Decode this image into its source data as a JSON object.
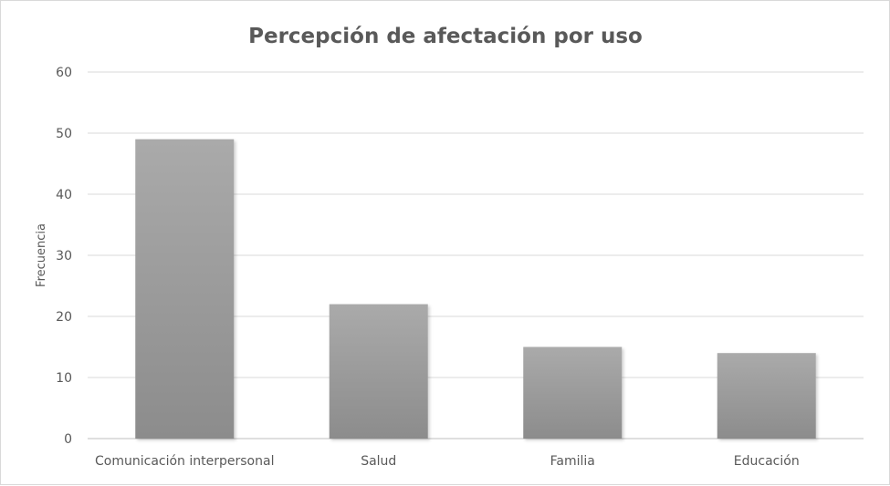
{
  "chart_data": {
    "type": "bar",
    "title": "Percepción de afectación por uso",
    "xlabel": "",
    "ylabel": "Frecuencia",
    "categories": [
      "Comunicación interpersonal",
      "Salud",
      "Familia",
      "Educación"
    ],
    "values": [
      49,
      22,
      15,
      14
    ],
    "ylim": [
      0,
      60
    ],
    "yticks": [
      "0",
      "10",
      "20",
      "30",
      "40",
      "50",
      "60"
    ],
    "grid": true,
    "legend": "none",
    "colors": {
      "bar_top": "#a8a8a8",
      "bar_bottom": "#8a8a8a",
      "grid": "#d9d9d9",
      "text": "#595959"
    }
  }
}
